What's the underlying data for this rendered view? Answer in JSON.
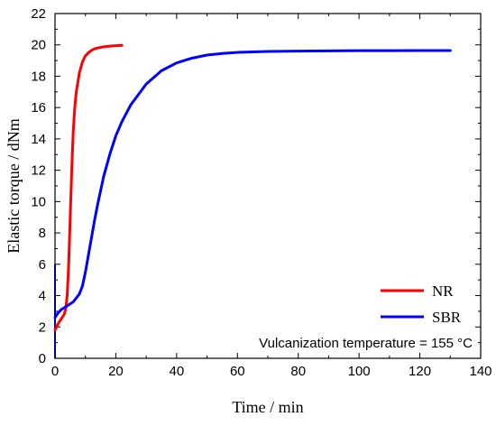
{
  "chart_data": {
    "type": "line",
    "xlabel": "Time / min",
    "ylabel": "Elastic torque / dNm",
    "xlim": [
      0,
      140
    ],
    "ylim": [
      0,
      22
    ],
    "x_ticks": [
      "0",
      "20",
      "40",
      "60",
      "80",
      "100",
      "120",
      "140"
    ],
    "y_ticks": [
      "0",
      "2",
      "4",
      "6",
      "8",
      "10",
      "12",
      "14",
      "16",
      "18",
      "20",
      "22"
    ],
    "grid": false,
    "legend_position": "bottom-right",
    "annotation": "Vulcanization temperature = 155 °C",
    "series": [
      {
        "name": "NR",
        "color": "#ff0000",
        "x": [
          0,
          1,
          2,
          3,
          3.5,
          4,
          4.5,
          5,
          5.5,
          6,
          6.5,
          7,
          8,
          9,
          10,
          11,
          12,
          13,
          14,
          16,
          18,
          20,
          22
        ],
        "y": [
          1.8,
          2.2,
          2.5,
          2.8,
          3.1,
          4.0,
          6.0,
          9.0,
          12.0,
          14.5,
          16.0,
          17.0,
          18.2,
          18.9,
          19.3,
          19.5,
          19.65,
          19.75,
          19.8,
          19.88,
          19.92,
          19.95,
          19.97
        ]
      },
      {
        "name": "SBR",
        "color": "#0000ff",
        "x": [
          0,
          1,
          2,
          4,
          6,
          8,
          9,
          10,
          11,
          12,
          13,
          14,
          16,
          18,
          20,
          22,
          25,
          30,
          35,
          40,
          45,
          50,
          55,
          60,
          70,
          80,
          90,
          100,
          110,
          120,
          130
        ],
        "y": [
          2.6,
          2.9,
          3.1,
          3.35,
          3.6,
          4.1,
          4.6,
          5.5,
          6.6,
          7.7,
          8.8,
          9.8,
          11.6,
          13.0,
          14.2,
          15.1,
          16.2,
          17.5,
          18.35,
          18.85,
          19.15,
          19.35,
          19.45,
          19.52,
          19.58,
          19.6,
          19.62,
          19.63,
          19.63,
          19.64,
          19.64
        ]
      }
    ],
    "extra_markings": [
      {
        "color": "#00008b",
        "x": [
          0,
          0
        ],
        "y": [
          0,
          6
        ]
      }
    ]
  }
}
